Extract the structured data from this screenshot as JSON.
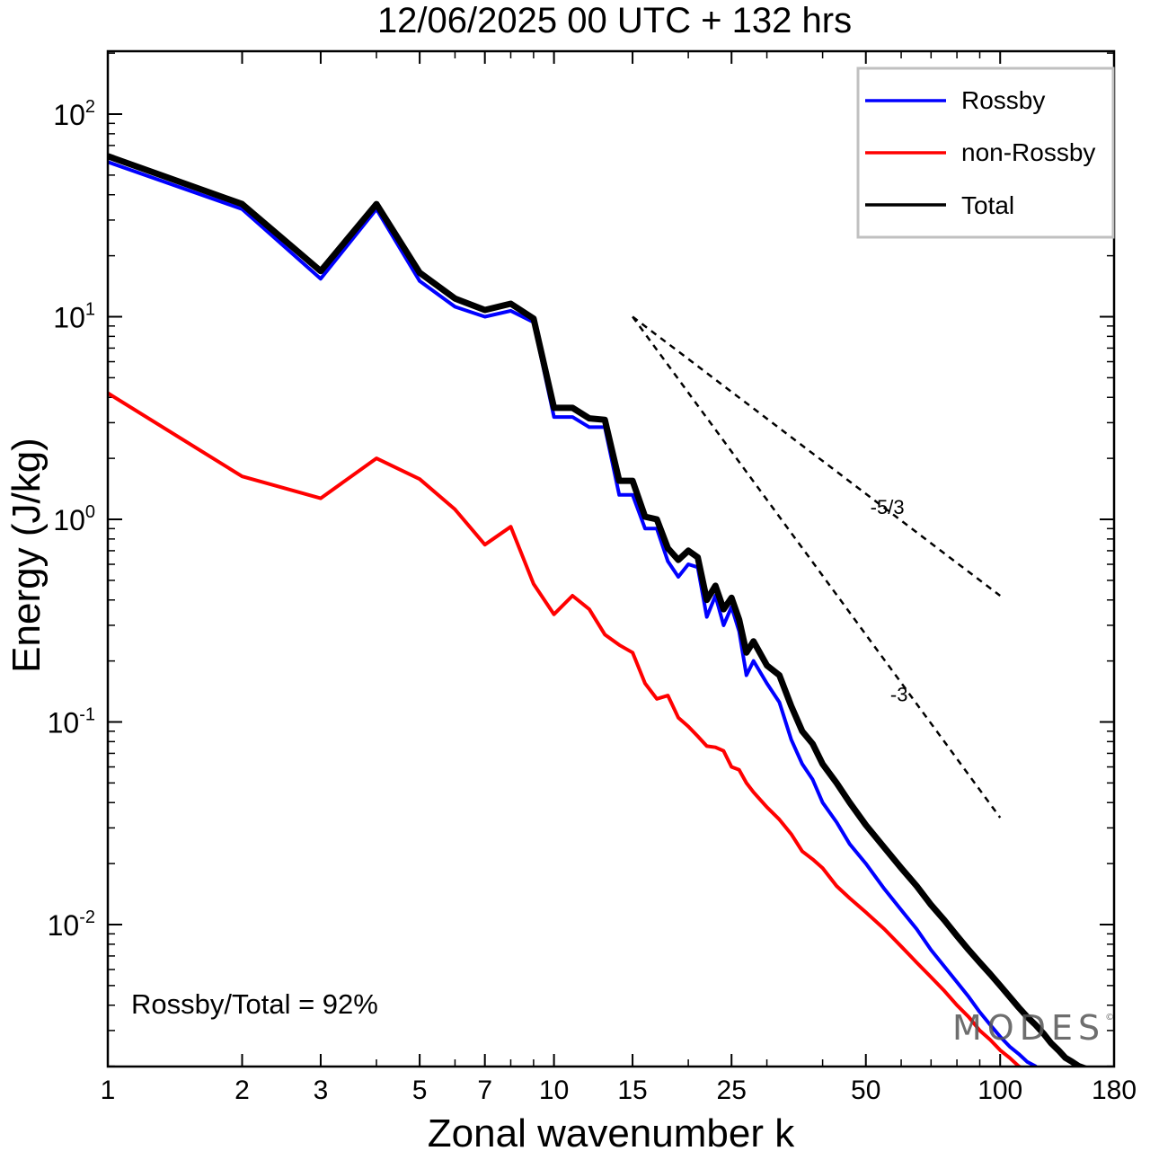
{
  "chart_data": {
    "type": "line",
    "title": "12/06/2025  00 UTC  + 132 hrs",
    "xlabel": "Zonal wavenumber k",
    "ylabel": "Energy (J/kg)",
    "xscale": "log",
    "yscale": "log",
    "xlim": [
      1,
      180
    ],
    "ylim": [
      0.002,
      200
    ],
    "xticks": [
      1,
      2,
      3,
      5,
      7,
      10,
      15,
      25,
      50,
      100,
      180
    ],
    "xtick_labels": [
      "1",
      "2",
      "3",
      "5",
      "7",
      "10",
      "15",
      "25",
      "50",
      "100",
      "180"
    ],
    "yticks": [
      {
        "value": 100,
        "base": "10",
        "exp": "2"
      },
      {
        "value": 10,
        "base": "10",
        "exp": "1"
      },
      {
        "value": 1,
        "base": "10",
        "exp": "0"
      },
      {
        "value": 0.1,
        "base": "10",
        "exp": "-1"
      },
      {
        "value": 0.01,
        "base": "10",
        "exp": "-2"
      }
    ],
    "grid": false,
    "legend_position": "top-right",
    "series": [
      {
        "name": "Rossby",
        "color": "#0000ff",
        "x": [
          1,
          2,
          3,
          4,
          5,
          6,
          7,
          8,
          9,
          10,
          11,
          12,
          13,
          14,
          15,
          16,
          17,
          18,
          19,
          20,
          21,
          22,
          23,
          24,
          25,
          26,
          27,
          28,
          30,
          32,
          34,
          36,
          38,
          40,
          43,
          46,
          50,
          55,
          60,
          65,
          70,
          75,
          80,
          85,
          90,
          95,
          100,
          105,
          110,
          115,
          120
        ],
        "y": [
          58,
          34,
          15.4,
          34,
          15,
          11.2,
          10,
          10.7,
          9.4,
          3.2,
          3.2,
          2.85,
          2.85,
          1.32,
          1.32,
          0.9,
          0.9,
          0.62,
          0.52,
          0.6,
          0.58,
          0.33,
          0.42,
          0.3,
          0.37,
          0.28,
          0.17,
          0.2,
          0.155,
          0.125,
          0.082,
          0.062,
          0.052,
          0.04,
          0.032,
          0.025,
          0.02,
          0.015,
          0.0118,
          0.0095,
          0.0075,
          0.0062,
          0.0052,
          0.0044,
          0.0037,
          0.0032,
          0.0028,
          0.0025,
          0.0023,
          0.0021,
          0.002
        ]
      },
      {
        "name": "non-Rossby",
        "color": "#ff0000",
        "x": [
          1,
          2,
          3,
          4,
          5,
          6,
          7,
          8,
          9,
          10,
          11,
          12,
          13,
          14,
          15,
          16,
          17,
          18,
          19,
          20,
          21,
          22,
          23,
          24,
          25,
          26,
          27,
          28,
          30,
          32,
          34,
          36,
          38,
          40,
          43,
          46,
          50,
          55,
          60,
          65,
          70,
          75,
          80,
          85,
          90,
          95,
          100,
          105,
          110,
          115,
          120
        ],
        "y": [
          4.2,
          1.63,
          1.27,
          2.0,
          1.58,
          1.12,
          0.75,
          0.92,
          0.48,
          0.34,
          0.42,
          0.36,
          0.27,
          0.24,
          0.22,
          0.155,
          0.13,
          0.135,
          0.105,
          0.095,
          0.085,
          0.076,
          0.075,
          0.072,
          0.06,
          0.058,
          0.05,
          0.045,
          0.038,
          0.033,
          0.028,
          0.023,
          0.021,
          0.019,
          0.0155,
          0.0135,
          0.0115,
          0.0095,
          0.0078,
          0.0065,
          0.0055,
          0.0047,
          0.004,
          0.0035,
          0.003,
          0.0027,
          0.0024,
          0.0022,
          0.002,
          0.0019,
          0.0018
        ]
      },
      {
        "name": "Total",
        "color": "#000000",
        "x": [
          1,
          2,
          3,
          4,
          5,
          6,
          7,
          8,
          9,
          10,
          11,
          12,
          13,
          14,
          15,
          16,
          17,
          18,
          19,
          20,
          21,
          22,
          23,
          24,
          25,
          26,
          27,
          28,
          30,
          32,
          34,
          36,
          38,
          40,
          43,
          46,
          50,
          55,
          60,
          65,
          70,
          75,
          80,
          85,
          90,
          95,
          100,
          105,
          110,
          115,
          120,
          125,
          130,
          135,
          140,
          145,
          150,
          155,
          160
        ],
        "y": [
          62,
          36,
          16.8,
          36,
          16.5,
          12.3,
          10.8,
          11.6,
          9.8,
          3.55,
          3.55,
          3.15,
          3.1,
          1.55,
          1.55,
          1.03,
          1.0,
          0.72,
          0.63,
          0.7,
          0.65,
          0.4,
          0.47,
          0.36,
          0.41,
          0.32,
          0.22,
          0.25,
          0.19,
          0.17,
          0.12,
          0.09,
          0.078,
          0.062,
          0.05,
          0.04,
          0.031,
          0.024,
          0.019,
          0.0155,
          0.0125,
          0.0105,
          0.0088,
          0.0075,
          0.0065,
          0.0057,
          0.005,
          0.0044,
          0.0039,
          0.0035,
          0.0032,
          0.0029,
          0.0026,
          0.0024,
          0.0022,
          0.0021,
          0.002,
          0.00195,
          0.0019
        ]
      }
    ],
    "reference_lines": [
      {
        "label": "-5/3",
        "x": [
          15,
          100
        ],
        "y": [
          10,
          0.42
        ]
      },
      {
        "label": "-3",
        "x": [
          15,
          100
        ],
        "y": [
          10,
          0.0337
        ]
      }
    ],
    "annotation": "Rossby/Total = 92%"
  },
  "watermark": {
    "text": "MODES",
    "mark": "©"
  }
}
